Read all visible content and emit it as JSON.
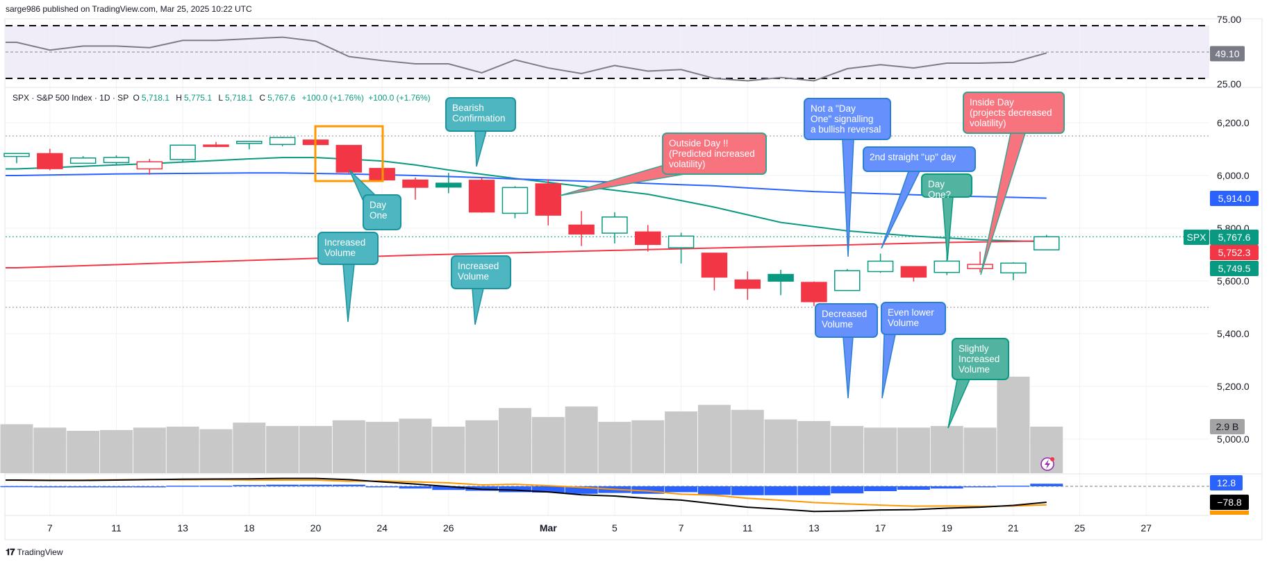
{
  "header": {
    "publisher_line": "sarge986 published on TradingView.com, Mar 25, 2025 10:22 UTC"
  },
  "legend": {
    "symbol": "SPX · S&P 500 Index · 1D · SP",
    "o_label": "O",
    "o": "5,718.1",
    "h_label": "H",
    "h": "5,775.1",
    "l_label": "L",
    "l": "5,718.1",
    "c_label": "C",
    "c": "5,767.6",
    "change1": "+100.0 (+1.76%)",
    "change2": "+100.0 (+1.76%)"
  },
  "footer": {
    "brand": "TradingView",
    "logo_text": "TV"
  },
  "colors": {
    "up": "#089981",
    "down": "#f23645",
    "ma_green": "#089981",
    "ma_blue": "#2962ff",
    "ma_red": "#f23645",
    "macd": "#000000",
    "signal": "#ff9800",
    "hist": "#2962ff",
    "volume": "#c8c8c8",
    "rsi": "#7e7b86",
    "highlight_box": "#ff9800"
  },
  "chart_data": {
    "type": "candlestick",
    "symbol": "SPX",
    "dates": [
      "Feb 6",
      "Feb 7",
      "Feb 10",
      "Feb 11",
      "Feb 12",
      "Feb 13",
      "Feb 14",
      "Feb 18",
      "Feb 19",
      "Feb 20",
      "Feb 21",
      "Feb 24",
      "Feb 25",
      "Feb 26",
      "Feb 27",
      "Feb 28",
      "Mar 3",
      "Mar 4",
      "Mar 5",
      "Mar 6",
      "Mar 7",
      "Mar 10",
      "Mar 11",
      "Mar 12",
      "Mar 13",
      "Mar 14",
      "Mar 17",
      "Mar 18",
      "Mar 19",
      "Mar 20",
      "Mar 21",
      "Mar 24"
    ],
    "open": [
      6072.2,
      6083.1,
      6046.4,
      6049.3,
      6025.1,
      6060.6,
      6115.5,
      6121.6,
      6117.8,
      6134.5,
      6114.1,
      6026.7,
      5982.7,
      5970.9,
      5981.9,
      5856.7,
      5968.3,
      5812.0,
      5781.4,
      5785.9,
      5726.0,
      5705.4,
      5603.7,
      5624.8,
      5594.5,
      5563.9,
      5635.6,
      5654.5,
      5632.4,
      5646.9,
      5630.7,
      5718.1
    ],
    "high": [
      6084.0,
      6101.3,
      6073.4,
      6076.3,
      6063.0,
      6116.9,
      6127.5,
      6129.6,
      6147.4,
      6141.0,
      6114.8,
      6043.6,
      5992.6,
      6009.8,
      5993.7,
      5959.4,
      5986.1,
      5865.0,
      5860.6,
      5812.1,
      5783.0,
      5705.4,
      5636.3,
      5642.2,
      5597.8,
      5645.3,
      5703.5,
      5655.7,
      5715.3,
      5711.2,
      5670.8,
      5775.1
    ],
    "low": [
      6046.8,
      6020.0,
      6044.8,
      6042.3,
      6003.0,
      6051.0,
      6107.6,
      6099.5,
      6111.1,
      6084.0,
      6008.6,
      5977.8,
      5908.5,
      5932.7,
      5858.8,
      5837.7,
      5810.9,
      5732.6,
      5742.4,
      5711.6,
      5666.3,
      5564.0,
      5528.4,
      5546.0,
      5504.7,
      5563.9,
      5631.0,
      5597.8,
      5622.2,
      5632.6,
      5603.1,
      5718.1
    ],
    "close": [
      6083.6,
      6026.0,
      6066.4,
      6068.5,
      6052.0,
      6115.1,
      6114.6,
      6129.6,
      6144.2,
      6117.5,
      6013.1,
      5983.3,
      5955.3,
      5956.1,
      5861.6,
      5954.5,
      5849.7,
      5778.2,
      5842.6,
      5738.5,
      5770.2,
      5614.6,
      5572.1,
      5599.3,
      5521.5,
      5638.9,
      5675.1,
      5614.7,
      5675.3,
      5662.9,
      5667.6,
      5767.6
    ],
    "ma_green": [
      6025,
      6030,
      6035,
      6040,
      6045,
      6051,
      6057,
      6063,
      6068,
      6068,
      6062,
      6055,
      6040,
      6021,
      6005,
      5989,
      5974,
      5959,
      5944,
      5929,
      5905,
      5880,
      5851,
      5822,
      5806,
      5790,
      5780,
      5770,
      5763,
      5756,
      5752,
      5749.5
    ],
    "ma_blue": [
      6000,
      6002,
      6004,
      6006,
      6007,
      6008,
      6009,
      6010,
      6010,
      6008,
      6006,
      6003,
      6000,
      5996,
      5992,
      5987,
      5983,
      5979,
      5975,
      5970,
      5965,
      5961,
      5953,
      5946,
      5939,
      5935,
      5931,
      5927,
      5923,
      5920,
      5917,
      5914
    ],
    "ma_red": [
      5650,
      5654,
      5658,
      5662,
      5666,
      5670,
      5674,
      5678,
      5682,
      5686,
      5690,
      5694,
      5698,
      5701,
      5704,
      5707,
      5710,
      5713,
      5716,
      5719,
      5722,
      5725,
      5728,
      5731,
      5734,
      5737,
      5740,
      5743,
      5746,
      5748,
      5750,
      5752.3
    ],
    "volume_billions": [
      3.05,
      2.84,
      2.64,
      2.69,
      2.84,
      2.9,
      2.74,
      3.15,
      2.94,
      2.94,
      3.3,
      3.2,
      3.4,
      2.9,
      3.3,
      4.06,
      3.5,
      4.16,
      3.2,
      3.3,
      3.85,
      4.26,
      3.95,
      3.35,
      3.25,
      2.94,
      2.84,
      2.84,
      2.94,
      2.84,
      6.02,
      2.9
    ],
    "rsi": [
      59.2,
      51.8,
      55.7,
      55.7,
      54.1,
      61.0,
      61.0,
      62.6,
      64.1,
      60.3,
      45.7,
      41.9,
      38.8,
      38.8,
      30.3,
      42.6,
      34.9,
      29.6,
      37.2,
      31.9,
      33.4,
      25.0,
      22.7,
      25.8,
      22.7,
      34.2,
      38.0,
      34.9,
      39.5,
      39.5,
      40.3,
      49.1
    ],
    "rsi_levels": {
      "upper": 75,
      "middle": 50,
      "lower": 25
    },
    "macd": [
      31,
      29,
      29,
      31,
      33,
      35,
      36,
      37,
      39,
      39,
      33,
      22,
      11,
      -1,
      -15,
      -19,
      -28,
      -42,
      -48,
      -60,
      -68,
      -86,
      -103,
      -113,
      -124,
      -122,
      -117,
      -115,
      -108,
      -103,
      -94,
      -78.8
    ],
    "macd_hist": [
      1,
      -1,
      -1,
      -1,
      -1,
      3,
      3,
      6,
      8,
      8,
      8,
      -4,
      -11,
      -18,
      -22,
      -29,
      -31,
      -37,
      -33,
      -37,
      -29,
      -42,
      -44,
      -44,
      -44,
      -35,
      -24,
      -17,
      -11,
      -4,
      3,
      12.8
    ],
    "price_ylim": [
      4880,
      6300
    ],
    "price_ticks": [
      {
        "value": 6200,
        "label": "6,200.0"
      },
      {
        "value": 6000,
        "label": "6,000.0"
      },
      {
        "value": 5800,
        "label": "5,800.0"
      },
      {
        "value": 5600,
        "label": "5,600.0"
      },
      {
        "value": 5400,
        "label": "5,400.0"
      },
      {
        "value": 5200,
        "label": "5,200.0"
      },
      {
        "value": 5000,
        "label": "5,000.0"
      }
    ],
    "rsi_ticks": [
      {
        "value": 75,
        "label": "75.00"
      },
      {
        "value": 25,
        "label": "25.00"
      }
    ],
    "horizontal_levels": [
      6150,
      5500
    ],
    "x_ticks": [
      {
        "index": 1,
        "label": "7"
      },
      {
        "index": 3,
        "label": "11"
      },
      {
        "index": 5,
        "label": "13"
      },
      {
        "index": 7,
        "label": "18"
      },
      {
        "index": 9,
        "label": "20"
      },
      {
        "index": 11,
        "label": "24"
      },
      {
        "index": 13,
        "label": "26"
      },
      {
        "index": 16,
        "label": "Mar",
        "bold": true
      },
      {
        "index": 18,
        "label": "5"
      },
      {
        "index": 20,
        "label": "7"
      },
      {
        "index": 22,
        "label": "11"
      },
      {
        "index": 24,
        "label": "13"
      },
      {
        "index": 26,
        "label": "17"
      },
      {
        "index": 28,
        "label": "19"
      },
      {
        "index": 30,
        "label": "21"
      },
      {
        "index": 32,
        "label": "25"
      },
      {
        "index": 34,
        "label": "27"
      }
    ],
    "price_tags": [
      {
        "symbol": "SPX",
        "value": 5767.6,
        "label": "5,767.6",
        "color": "#089981"
      },
      {
        "value": 5752.3,
        "label": "5,752.3",
        "color": "#f23645"
      },
      {
        "value": 5749.5,
        "label": "5,749.5",
        "color": "#089981"
      },
      {
        "value": 5914.0,
        "label": "5,914.0",
        "color": "#2962ff"
      }
    ],
    "rsi_tag": {
      "value": 49.1,
      "label": "49.10",
      "color": "#787b86"
    },
    "volume_tag": {
      "value": 2.9,
      "label": "2.9 B",
      "color": "#a3a3a3"
    },
    "macd_tags": [
      {
        "value": 12.8,
        "label": "12.8",
        "color": "#2962ff"
      },
      {
        "value": -78.8,
        "label": "−78.8",
        "color": "#000000"
      }
    ],
    "highlight_box": {
      "from": "Feb 20",
      "to": "Feb 24"
    }
  },
  "annotations": [
    {
      "text": "Day\nOne",
      "style": "teal"
    },
    {
      "text": "Increased\nVolume",
      "style": "teal"
    },
    {
      "text": "Bearish\nConfirmation",
      "style": "teal"
    },
    {
      "text": "Increased\nVolume",
      "style": "teal"
    },
    {
      "text": "Outside Day !!\n(Predicted increased\nvolatility)",
      "style": "pink"
    },
    {
      "text": "Not a \"Day\nOne\" signalling\na bullish reversal",
      "style": "blue"
    },
    {
      "text": "2nd straight \"up\" day",
      "style": "blue"
    },
    {
      "text": "Day One?",
      "style": "green"
    },
    {
      "text": "Inside Day\n(projects decreased\nvolatility)",
      "style": "pink"
    },
    {
      "text": "Decreased\nVolume",
      "style": "blue"
    },
    {
      "text": "Even lower\nVolume",
      "style": "blue"
    },
    {
      "text": "Slightly\nIncreased\nVolume",
      "style": "green"
    }
  ]
}
